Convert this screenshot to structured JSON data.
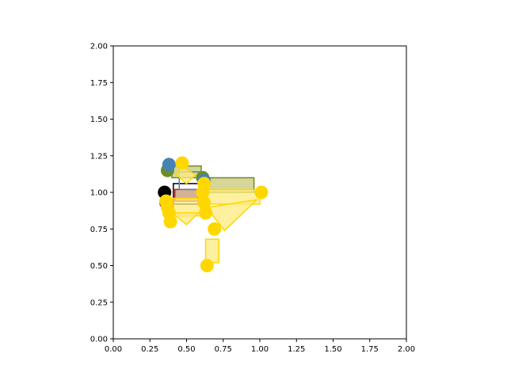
{
  "chart_data": {
    "type": "scatter",
    "title": "",
    "xlabel": "",
    "ylabel": "",
    "xlim": [
      0,
      2
    ],
    "ylim": [
      0,
      2
    ],
    "grid": false,
    "x_ticks": [
      "0.00",
      "0.25",
      "0.50",
      "0.75",
      "1.00",
      "1.25",
      "1.50",
      "1.75",
      "2.00"
    ],
    "y_ticks": [
      "0.00",
      "0.25",
      "0.50",
      "0.75",
      "1.00",
      "1.25",
      "1.50",
      "1.75",
      "2.00"
    ],
    "colors": {
      "black": "#000000",
      "darkred": "#b22222",
      "olive": "#6b8e23",
      "steelblue": "#4682b4",
      "gold": "#ffd700",
      "goldfill": "#ffeb80",
      "greenfill": "#c8c878",
      "brownfill": "#c8966e"
    },
    "series": [
      {
        "color_key": "black",
        "points": [
          [
            0.35,
            1.0
          ]
        ],
        "rects": [
          [
            0.41,
            0.92,
            0.64,
            1.06
          ]
        ]
      },
      {
        "color_key": "darkred",
        "points": [
          [
            0.36,
            0.93
          ]
        ],
        "rects": [
          [
            0.42,
            0.94,
            0.58,
            1.02
          ]
        ]
      },
      {
        "color_key": "olive",
        "points": [
          [
            0.37,
            1.15
          ],
          [
            0.61,
            1.1
          ]
        ],
        "rects": [
          [
            0.4,
            1.1,
            0.6,
            1.18
          ],
          [
            0.62,
            1.0,
            0.96,
            1.1
          ]
        ]
      },
      {
        "color_key": "steelblue",
        "points": [
          [
            0.38,
            1.19
          ],
          [
            0.62,
            1.08
          ]
        ],
        "rects": [
          [
            0.45,
            1.02,
            0.62,
            1.14
          ]
        ]
      },
      {
        "color_key": "gold",
        "points": [
          [
            0.47,
            1.2
          ],
          [
            0.62,
            1.06
          ],
          [
            0.61,
            1.0
          ],
          [
            0.62,
            0.93
          ],
          [
            0.63,
            0.86
          ],
          [
            0.37,
            0.9
          ],
          [
            0.38,
            0.86
          ],
          [
            0.39,
            0.8
          ],
          [
            0.69,
            0.75
          ],
          [
            0.64,
            0.5
          ],
          [
            1.01,
            1.0
          ],
          [
            0.36,
            0.94
          ]
        ],
        "rects": [
          [
            0.62,
            0.92,
            1.0,
            1.02
          ],
          [
            0.4,
            0.84,
            0.6,
            0.96
          ],
          [
            0.63,
            0.52,
            0.72,
            0.68
          ]
        ],
        "polygons": [
          [
            [
              0.66,
              0.9
            ],
            [
              0.98,
              0.95
            ],
            [
              0.76,
              0.74
            ],
            [
              0.68,
              0.84
            ]
          ],
          [
            [
              0.47,
              1.18
            ],
            [
              0.56,
              1.12
            ],
            [
              0.5,
              1.06
            ],
            [
              0.43,
              1.12
            ]
          ],
          [
            [
              0.4,
              0.86
            ],
            [
              0.5,
              0.78
            ],
            [
              0.58,
              0.86
            ]
          ]
        ]
      }
    ]
  }
}
